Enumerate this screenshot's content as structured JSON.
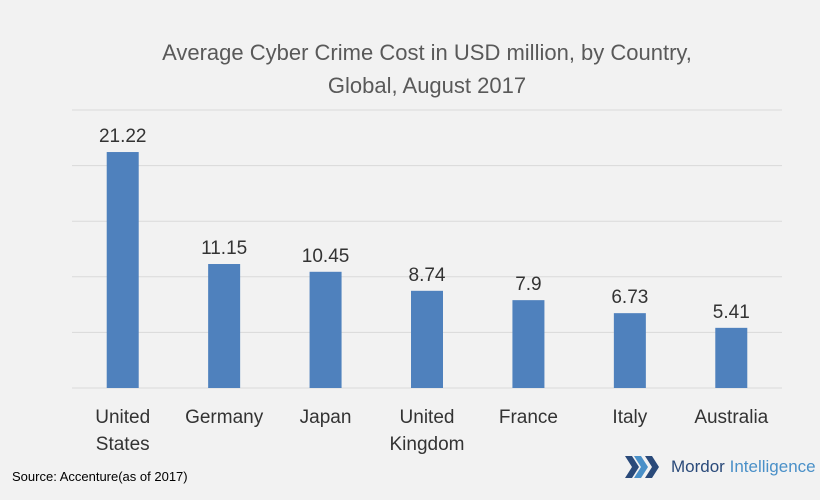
{
  "chart_data": {
    "type": "bar",
    "title_line1": "Average Cyber Crime Cost in USD million, by Country,",
    "title_line2": "Global, August 2017",
    "categories": [
      [
        "United",
        "States"
      ],
      [
        "Germany"
      ],
      [
        "Japan"
      ],
      [
        "United",
        "Kingdom"
      ],
      [
        "France"
      ],
      [
        "Italy"
      ],
      [
        "Australia"
      ]
    ],
    "values": [
      21.22,
      11.15,
      10.45,
      8.74,
      7.9,
      6.73,
      5.41
    ],
    "value_labels": [
      "21.22",
      "11.15",
      "10.45",
      "8.74",
      "7.9",
      "6.73",
      "5.41"
    ],
    "ylim": [
      0,
      25
    ],
    "gridlines": [
      5,
      10,
      15,
      20,
      25
    ],
    "grid": true,
    "bar_color": "#4f81bd",
    "grid_color": "#d9d9d9"
  },
  "footer": {
    "source": "Source: Accenture(as of 2017)",
    "logo_word1": "Mordor",
    "logo_word2": "Intelligence",
    "logo_colors": [
      "#2a4a7a",
      "#4a90c8"
    ]
  }
}
